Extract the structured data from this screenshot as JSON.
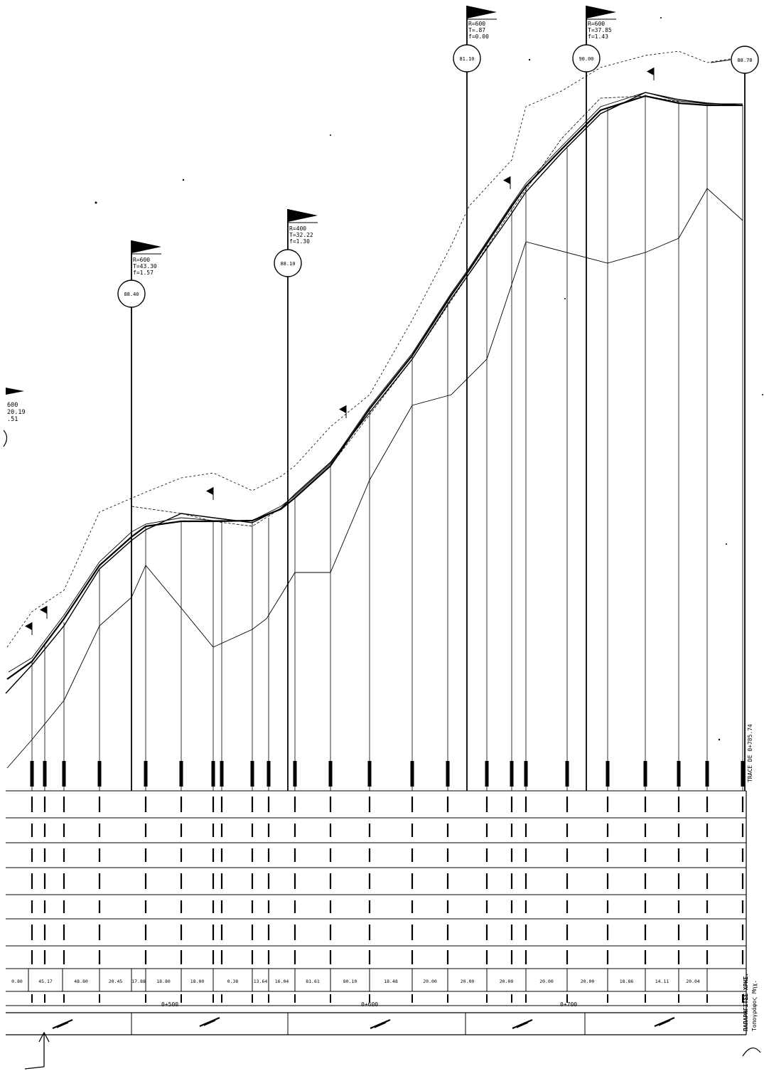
{
  "vertical_curves": [
    {
      "label": "R=600\nT=43.30\nf=1.57",
      "elevation": "88.40"
    },
    {
      "label": "R=400\nT=32.22\nf=1.30",
      "elevation": "88.10"
    },
    {
      "label": "R=600\nT=.87\nf=0.00",
      "elevation": "81.10"
    },
    {
      "label": "R=600\nT=37.85\nf=1.43",
      "elevation": "90.00"
    },
    {
      "label": "",
      "elevation": "88.78"
    }
  ],
  "partial_curve_label": "600\n20.19\n.51",
  "chainage_labels": [
    "0+500",
    "0+600",
    "0+700"
  ],
  "distance_row": [
    "0.80",
    "45.17",
    "48.80",
    "20.45",
    "17.88",
    "18.80",
    "18.00",
    "0.38",
    "13.64",
    "16.04",
    "81.61",
    "80.10",
    "18.48",
    "20.00",
    "20.00",
    "20.00",
    "20.00",
    "20.00",
    "18.86",
    "14.11",
    "20.04"
  ],
  "right_vertical_text": "TRACE DE 0+785.74",
  "title_block": {
    "line1": "ΠΑΠΑΡΗΓΙΤΣΣ ΧΡΗΣ.",
    "line2": "Τοπογράφος Μηχ."
  },
  "alignment_boxes": [
    "",
    "",
    "",
    "",
    "",
    ""
  ],
  "figure_data": {
    "type": "longitudinal profile",
    "grid": true
  }
}
